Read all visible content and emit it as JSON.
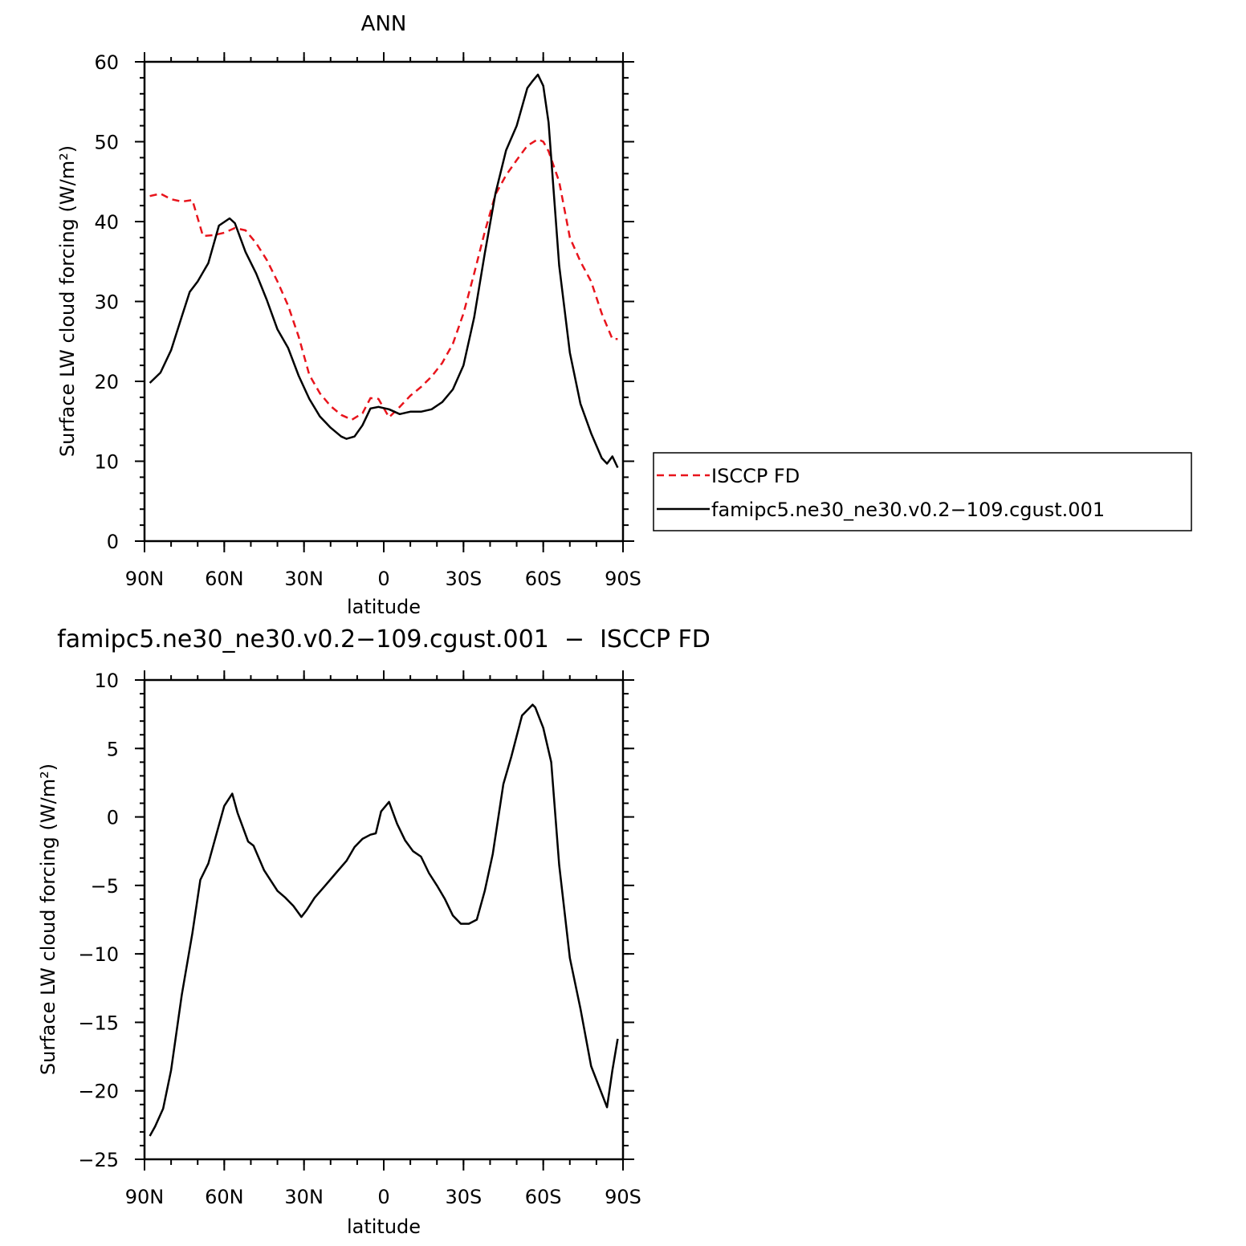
{
  "chart_data": [
    {
      "type": "line",
      "title": "ANN",
      "xlabel": "latitude",
      "ylabel": "Surface LW cloud forcing (W/m²)",
      "ylim": [
        0,
        60
      ],
      "yticks": [
        0,
        10,
        20,
        30,
        40,
        50,
        60
      ],
      "xlim": [
        90,
        -90
      ],
      "xticks": [
        90,
        60,
        30,
        0,
        -30,
        -60,
        -90
      ],
      "xticklabels": [
        "90N",
        "60N",
        "30N",
        "0",
        "30S",
        "60S",
        "90S"
      ],
      "legend": "right, outside",
      "series": [
        {
          "name": "ISCCP FD",
          "color": "#e8141c",
          "dash": true,
          "x": [
            88,
            84,
            80,
            76,
            72,
            68,
            64,
            60,
            56,
            52,
            48,
            44,
            40,
            36,
            32,
            28,
            24,
            20,
            16,
            12,
            8,
            5,
            2,
            -2,
            -6,
            -10,
            -14,
            -18,
            -22,
            -26,
            -30,
            -34,
            -38,
            -42,
            -46,
            -50,
            -54,
            -58,
            -60,
            -62,
            -66,
            -70,
            -74,
            -78,
            -82,
            -86,
            -88
          ],
          "y": [
            43.2,
            43.5,
            42.8,
            42.5,
            42.7,
            38.2,
            38.3,
            38.6,
            39.2,
            38.9,
            37.3,
            35.2,
            32.5,
            29.5,
            25.6,
            20.8,
            18.5,
            16.9,
            15.8,
            15.2,
            16.0,
            17.9,
            17.8,
            15.5,
            16.8,
            18.2,
            19.3,
            20.6,
            22.3,
            24.7,
            28.5,
            33.5,
            38.7,
            43.4,
            45.8,
            47.7,
            49.5,
            50.3,
            50.0,
            48.8,
            45.0,
            38.0,
            35.0,
            32.5,
            28.5,
            25.3,
            25.3
          ]
        },
        {
          "name": "famipc5.ne30_ne30.v0.2−109.cgust.001",
          "color": "#000000",
          "dash": false,
          "x": [
            88,
            84,
            80,
            76,
            73,
            70,
            66,
            62,
            58,
            56,
            52,
            48,
            44,
            40,
            36,
            32,
            28,
            24,
            20,
            16,
            14,
            11,
            8,
            5,
            2,
            -2,
            -6,
            -10,
            -14,
            -18,
            -22,
            -26,
            -30,
            -34,
            -38,
            -42,
            -46,
            -50,
            -54,
            -56,
            -58,
            -60,
            -62,
            -66,
            -70,
            -74,
            -78,
            -82,
            -84,
            -86,
            -88
          ],
          "y": [
            19.8,
            21.1,
            23.9,
            28.1,
            31.2,
            32.5,
            34.8,
            39.5,
            40.4,
            39.8,
            36.2,
            33.5,
            30.2,
            26.5,
            24.2,
            20.7,
            17.8,
            15.6,
            14.2,
            13.1,
            12.8,
            13.1,
            14.5,
            16.6,
            16.8,
            16.5,
            15.9,
            16.2,
            16.2,
            16.5,
            17.4,
            19.0,
            22.0,
            28.0,
            36.0,
            43.5,
            48.9,
            52.0,
            56.7,
            57.6,
            58.4,
            57.0,
            52.4,
            34.5,
            23.6,
            17.2,
            13.5,
            10.4,
            9.7,
            10.6,
            9.2
          ]
        }
      ]
    },
    {
      "type": "line",
      "title": "famipc5.ne30_ne30.v0.2−109.cgust.001  −  ISCCP FD",
      "xlabel": "latitude",
      "ylabel": "Surface LW cloud forcing (W/m²)",
      "ylim": [
        -25,
        10
      ],
      "yticks": [
        -25,
        -20,
        -15,
        -10,
        -5,
        0,
        5,
        10
      ],
      "yticklabels": [
        "−25",
        "−20",
        "−15",
        "−10",
        "−5",
        "0",
        "5",
        "10"
      ],
      "xlim": [
        90,
        -90
      ],
      "xticks": [
        90,
        60,
        30,
        0,
        -30,
        -60,
        -90
      ],
      "xticklabels": [
        "90N",
        "60N",
        "30N",
        "0",
        "30S",
        "60S",
        "90S"
      ],
      "series": [
        {
          "color": "#000000",
          "dash": false,
          "x": [
            88,
            86,
            83,
            80,
            76,
            72,
            69,
            66,
            63,
            60,
            57,
            55,
            51,
            49,
            45,
            40,
            37,
            34,
            31,
            29,
            26,
            22,
            18,
            14,
            11,
            8,
            5,
            3,
            1,
            -2,
            -5,
            -8,
            -11,
            -14,
            -17,
            -20,
            -23,
            -26,
            -29,
            -32,
            -35,
            -38,
            -41,
            -45,
            -48,
            -52,
            -56,
            -57,
            -60,
            -63,
            -66,
            -70,
            -74,
            -78,
            -82,
            -84,
            -86,
            -88
          ],
          "y": [
            -23.3,
            -22.6,
            -21.3,
            -18.5,
            -13.0,
            -8.5,
            -4.6,
            -3.4,
            -1.3,
            0.8,
            1.7,
            0.3,
            -1.8,
            -2.1,
            -3.9,
            -5.4,
            -5.9,
            -6.5,
            -7.3,
            -6.8,
            -5.9,
            -5.0,
            -4.1,
            -3.2,
            -2.2,
            -1.6,
            -1.3,
            -1.2,
            0.4,
            1.1,
            -0.5,
            -1.7,
            -2.5,
            -2.9,
            -4.1,
            -5.0,
            -6.0,
            -7.2,
            -7.8,
            -7.8,
            -7.5,
            -5.4,
            -2.7,
            2.4,
            4.4,
            7.4,
            8.2,
            8.0,
            6.5,
            4.0,
            -3.5,
            -10.3,
            -14.0,
            -18.2,
            -20.2,
            -21.2,
            -18.5,
            -16.2
          ]
        }
      ]
    }
  ]
}
